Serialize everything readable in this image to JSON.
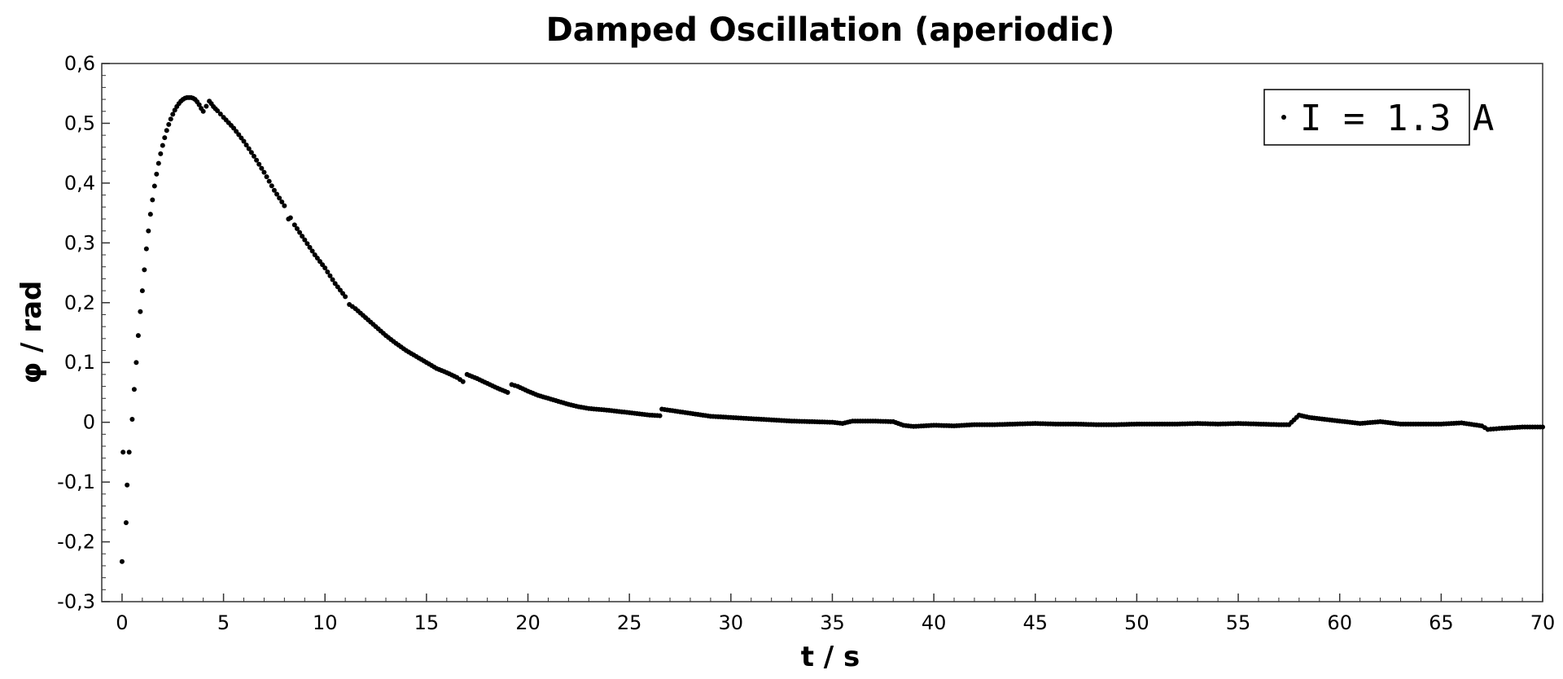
{
  "chart_data": {
    "type": "scatter",
    "title": "Damped Oscillation (aperiodic)",
    "xlabel": "t / s",
    "ylabel": "φ / rad",
    "xlim": [
      -1,
      70
    ],
    "ylim": [
      -0.3,
      0.6
    ],
    "xticks": [
      "0",
      "5",
      "10",
      "15",
      "20",
      "25",
      "30",
      "35",
      "40",
      "45",
      "50",
      "55",
      "60",
      "65",
      "70"
    ],
    "yticks": [
      "0,6",
      "0,5",
      "0,4",
      "0,3",
      "0,2",
      "0,1",
      "0",
      "-0,1",
      "-0,2",
      "-0,3"
    ],
    "grid": false,
    "legend_position": "top-right",
    "marker_color": "#000000",
    "series": [
      {
        "name": "I = 1.3 A",
        "points": [
          [
            0.0,
            -0.233
          ],
          [
            0.05,
            -0.05
          ],
          [
            0.2,
            -0.168
          ],
          [
            0.25,
            -0.105
          ],
          [
            0.35,
            -0.05
          ],
          [
            0.5,
            0.005
          ],
          [
            0.6,
            0.055
          ],
          [
            0.7,
            0.1
          ],
          [
            0.8,
            0.145
          ],
          [
            0.9,
            0.185
          ],
          [
            1.0,
            0.22
          ],
          [
            1.1,
            0.255
          ],
          [
            1.2,
            0.29
          ],
          [
            1.3,
            0.32
          ],
          [
            1.4,
            0.348
          ],
          [
            1.5,
            0.372
          ],
          [
            1.6,
            0.395
          ],
          [
            1.7,
            0.415
          ],
          [
            1.8,
            0.433
          ],
          [
            1.9,
            0.449
          ],
          [
            2.0,
            0.463
          ],
          [
            2.1,
            0.476
          ],
          [
            2.2,
            0.488
          ],
          [
            2.3,
            0.498
          ],
          [
            2.4,
            0.507
          ],
          [
            2.5,
            0.515
          ],
          [
            2.6,
            0.522
          ],
          [
            2.7,
            0.528
          ],
          [
            2.8,
            0.533
          ],
          [
            2.9,
            0.537
          ],
          [
            3.0,
            0.54
          ],
          [
            3.1,
            0.542
          ],
          [
            3.2,
            0.543
          ],
          [
            3.3,
            0.543
          ],
          [
            3.4,
            0.543
          ],
          [
            3.5,
            0.542
          ],
          [
            3.6,
            0.54
          ],
          [
            3.7,
            0.536
          ],
          [
            3.8,
            0.531
          ],
          [
            3.9,
            0.525
          ],
          [
            4.0,
            0.52
          ],
          [
            4.3,
            0.537
          ],
          [
            4.4,
            0.533
          ],
          [
            4.5,
            0.528
          ],
          [
            4.7,
            0.521
          ],
          [
            5.0,
            0.51
          ],
          [
            5.5,
            0.492
          ],
          [
            6.0,
            0.47
          ],
          [
            6.5,
            0.445
          ],
          [
            7.0,
            0.418
          ],
          [
            7.5,
            0.388
          ],
          [
            8.0,
            0.362
          ],
          [
            8.2,
            0.34
          ],
          [
            8.3,
            0.342
          ],
          [
            8.5,
            0.33
          ],
          [
            9.0,
            0.305
          ],
          [
            9.5,
            0.28
          ],
          [
            10.0,
            0.258
          ],
          [
            10.5,
            0.232
          ],
          [
            11.0,
            0.21
          ],
          [
            11.2,
            0.197
          ],
          [
            11.5,
            0.19
          ],
          [
            12.0,
            0.175
          ],
          [
            12.5,
            0.16
          ],
          [
            13.0,
            0.145
          ],
          [
            13.5,
            0.132
          ],
          [
            14.0,
            0.12
          ],
          [
            14.5,
            0.11
          ],
          [
            15.0,
            0.1
          ],
          [
            15.5,
            0.09
          ],
          [
            16.0,
            0.083
          ],
          [
            16.5,
            0.075
          ],
          [
            16.8,
            0.068
          ],
          [
            17.0,
            0.08
          ],
          [
            17.5,
            0.073
          ],
          [
            18.0,
            0.065
          ],
          [
            18.5,
            0.057
          ],
          [
            19.0,
            0.05
          ],
          [
            19.2,
            0.063
          ],
          [
            19.5,
            0.06
          ],
          [
            20.0,
            0.052
          ],
          [
            20.5,
            0.045
          ],
          [
            21.0,
            0.04
          ],
          [
            21.5,
            0.035
          ],
          [
            22.0,
            0.03
          ],
          [
            22.5,
            0.026
          ],
          [
            23.0,
            0.023
          ],
          [
            24.0,
            0.02
          ],
          [
            25.0,
            0.016
          ],
          [
            26.0,
            0.012
          ],
          [
            26.5,
            0.011
          ],
          [
            26.6,
            0.022
          ],
          [
            27.0,
            0.02
          ],
          [
            28.0,
            0.015
          ],
          [
            29.0,
            0.01
          ],
          [
            30.0,
            0.008
          ],
          [
            31.0,
            0.006
          ],
          [
            32.0,
            0.004
          ],
          [
            33.0,
            0.002
          ],
          [
            34.0,
            0.001
          ],
          [
            35.0,
            0.0
          ],
          [
            35.5,
            -0.002
          ],
          [
            36.0,
            0.002
          ],
          [
            37.0,
            0.002
          ],
          [
            38.0,
            0.001
          ],
          [
            38.5,
            -0.005
          ],
          [
            39.0,
            -0.007
          ],
          [
            40.0,
            -0.005
          ],
          [
            41.0,
            -0.006
          ],
          [
            42.0,
            -0.004
          ],
          [
            43.0,
            -0.004
          ],
          [
            44.0,
            -0.003
          ],
          [
            45.0,
            -0.002
          ],
          [
            46.0,
            -0.003
          ],
          [
            47.0,
            -0.003
          ],
          [
            48.0,
            -0.004
          ],
          [
            49.0,
            -0.004
          ],
          [
            50.0,
            -0.003
          ],
          [
            51.0,
            -0.003
          ],
          [
            52.0,
            -0.003
          ],
          [
            53.0,
            -0.002
          ],
          [
            54.0,
            -0.003
          ],
          [
            55.0,
            -0.002
          ],
          [
            56.0,
            -0.003
          ],
          [
            57.0,
            -0.004
          ],
          [
            57.5,
            -0.004
          ],
          [
            58.0,
            0.012
          ],
          [
            58.5,
            0.008
          ],
          [
            59.0,
            0.006
          ],
          [
            60.0,
            0.002
          ],
          [
            61.0,
            -0.002
          ],
          [
            62.0,
            0.001
          ],
          [
            63.0,
            -0.003
          ],
          [
            64.0,
            -0.003
          ],
          [
            65.0,
            -0.003
          ],
          [
            66.0,
            -0.001
          ],
          [
            67.0,
            -0.006
          ],
          [
            67.3,
            -0.012
          ],
          [
            68.0,
            -0.01
          ],
          [
            69.0,
            -0.008
          ],
          [
            70.0,
            -0.008
          ]
        ]
      }
    ]
  }
}
